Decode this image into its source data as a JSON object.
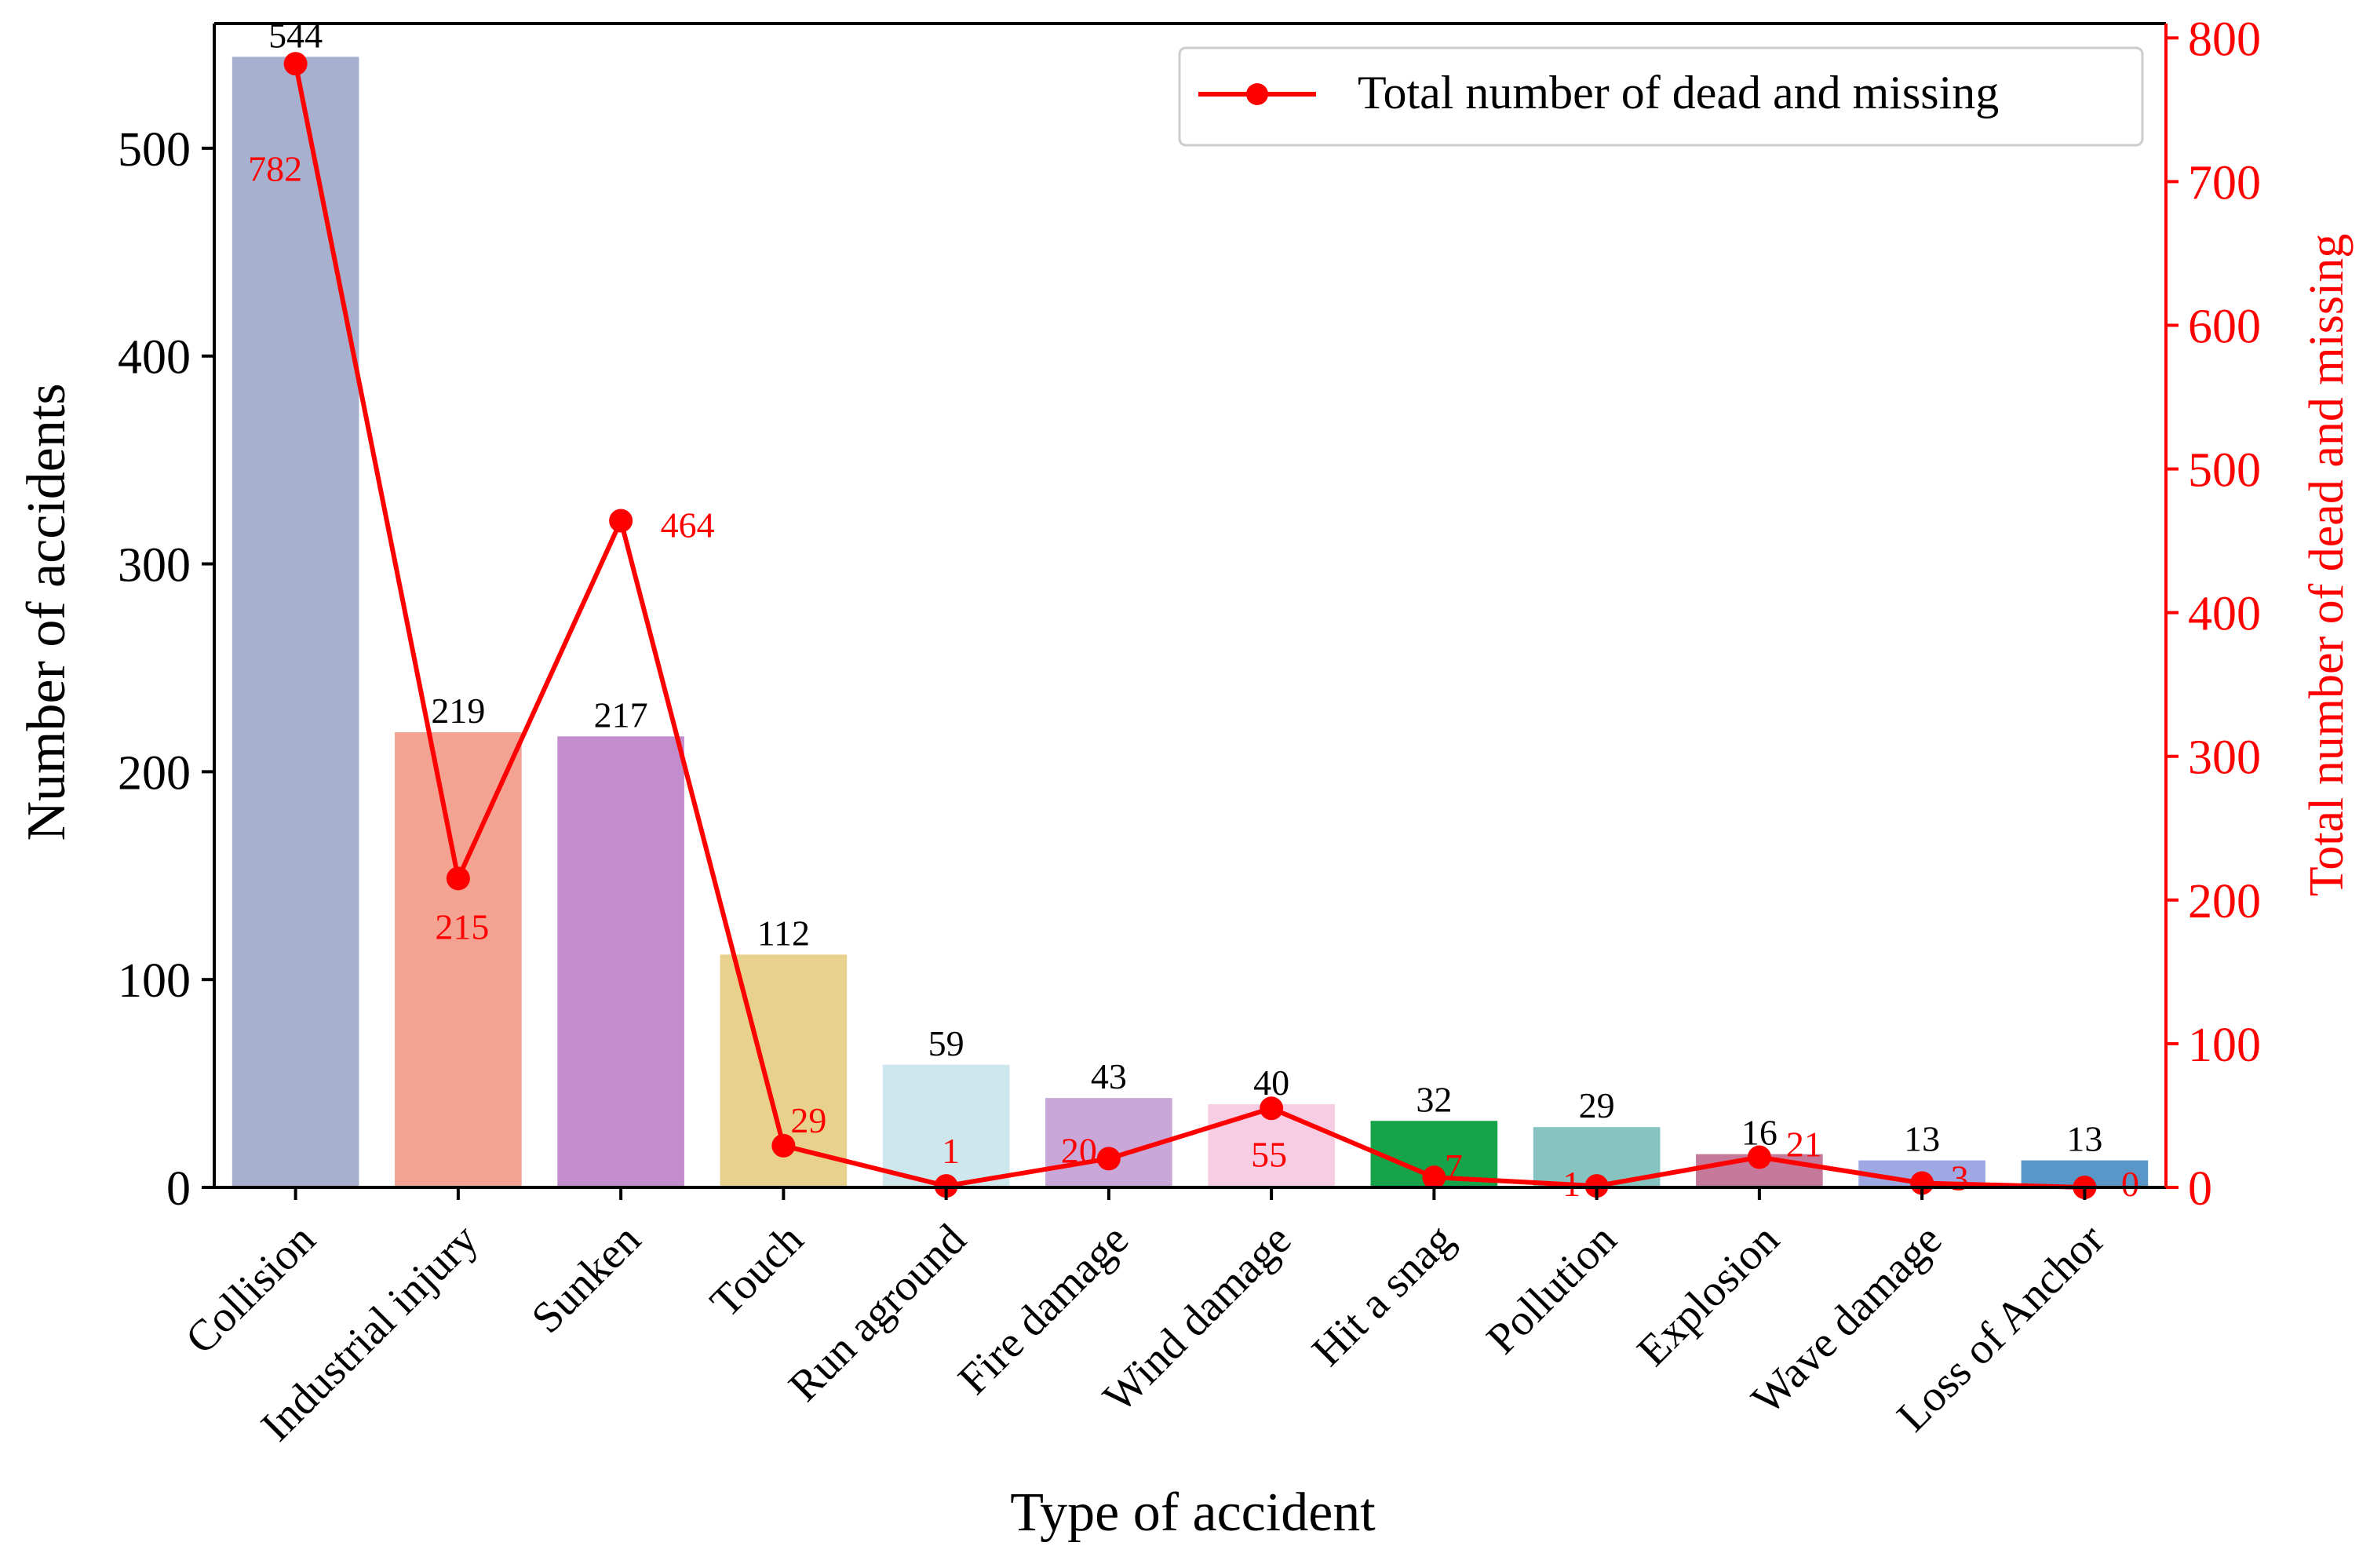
{
  "chart_data": {
    "type": "bar+line",
    "xlabel": "Type of accident",
    "ylabel": "Number of accidents",
    "y2label": "Total number of dead and missing",
    "categories": [
      "Collision",
      "Industrial injury",
      "Sunken",
      "Touch",
      "Run aground",
      "Fire damage",
      "Wind damage",
      "Hit a snag",
      "Pollution",
      "Explosion",
      "Wave damage",
      "Loss of Anchor"
    ],
    "bar_values": [
      544,
      219,
      217,
      112,
      59,
      43,
      40,
      32,
      29,
      16,
      13,
      13
    ],
    "bar_colors": [
      "#a7b0cf",
      "#f4a393",
      "#c38ccc",
      "#e8d08d",
      "#cde7ed",
      "#c9a8d9",
      "#f7cde4",
      "#16a34a",
      "#87c4c1",
      "#c67a9b",
      "#9ea8e3",
      "#5a97c9"
    ],
    "line_values": [
      782,
      215,
      464,
      29,
      1,
      20,
      55,
      7,
      1,
      21,
      3,
      0
    ],
    "line_color": "#ff0000",
    "legend_label": "Total number of dead and missing",
    "legend_position": "top-right",
    "ylim": [
      0,
      560
    ],
    "yticks": [
      0,
      100,
      200,
      300,
      400,
      500
    ],
    "y2lim": [
      0,
      810
    ],
    "y2ticks": [
      0,
      100,
      200,
      300,
      400,
      500,
      600,
      700,
      800
    ]
  }
}
